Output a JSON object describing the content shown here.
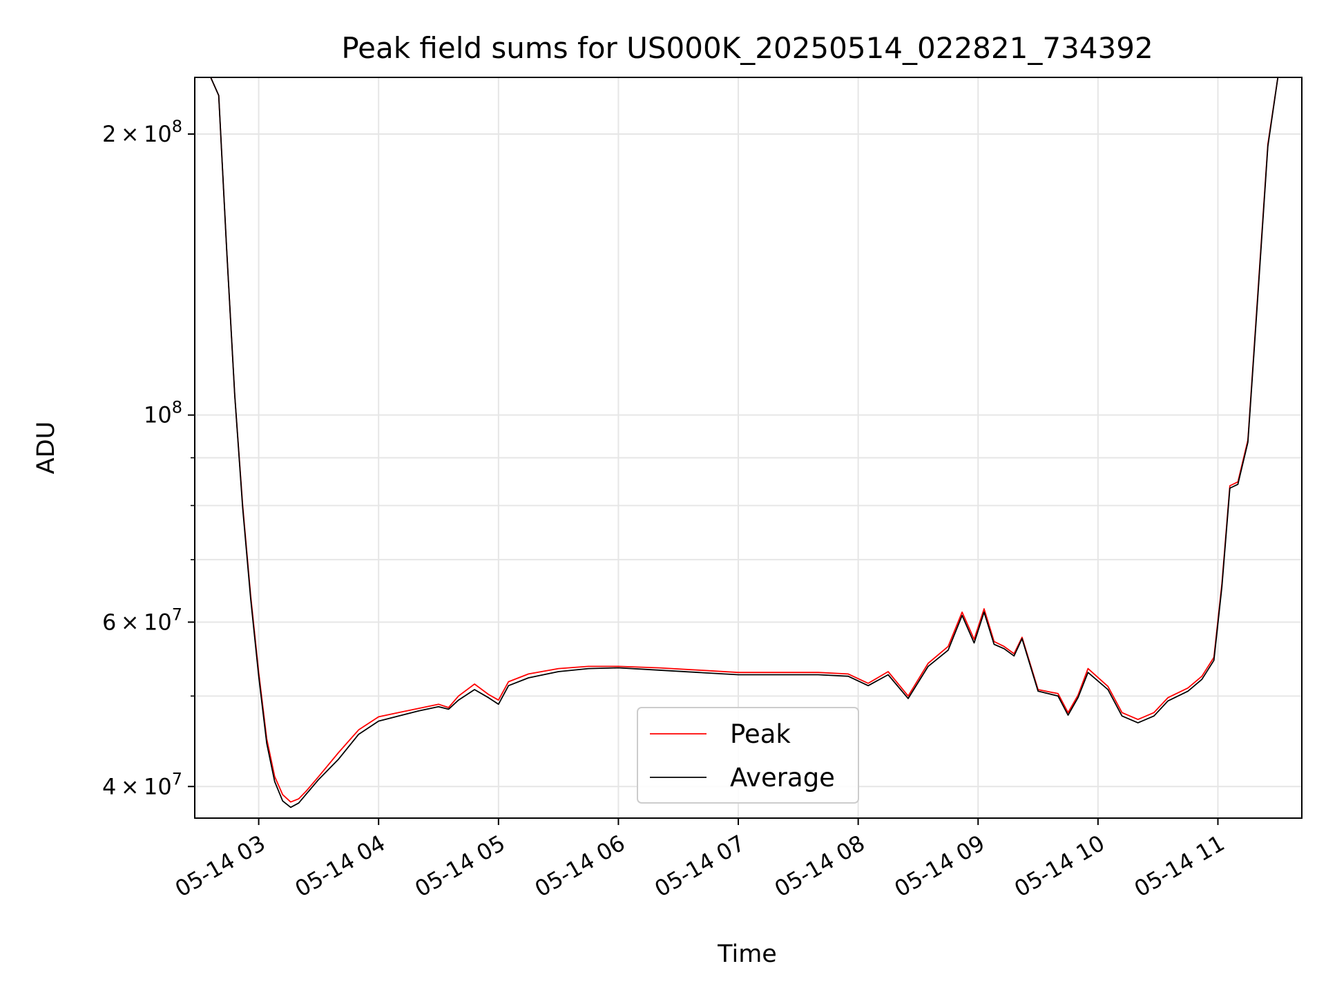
{
  "chart_data": {
    "type": "line",
    "title": "Peak field sums for US000K_20250514_022821_734392",
    "xlabel": "Time",
    "ylabel": "ADU",
    "yscale": "log",
    "grid": true,
    "legend_position": "lower-center",
    "xlim": [
      "2025-05-14 02:28",
      "2025-05-14 11:42"
    ],
    "ylim": [
      37000000,
      230000000
    ],
    "x_ticks": [
      {
        "value": "2025-05-14 03:00",
        "label": "05-14 03"
      },
      {
        "value": "2025-05-14 04:00",
        "label": "05-14 04"
      },
      {
        "value": "2025-05-14 05:00",
        "label": "05-14 05"
      },
      {
        "value": "2025-05-14 06:00",
        "label": "05-14 06"
      },
      {
        "value": "2025-05-14 07:00",
        "label": "05-14 07"
      },
      {
        "value": "2025-05-14 08:00",
        "label": "05-14 08"
      },
      {
        "value": "2025-05-14 09:00",
        "label": "05-14 09"
      },
      {
        "value": "2025-05-14 10:00",
        "label": "05-14 10"
      },
      {
        "value": "2025-05-14 11:00",
        "label": "05-14 11"
      }
    ],
    "y_major_ticks": [
      {
        "value": 40000000,
        "mant": "4",
        "exp": "7"
      },
      {
        "value": 60000000,
        "mant": "6",
        "exp": "7"
      },
      {
        "value": 100000000,
        "mant": "",
        "exp": "8"
      },
      {
        "value": 200000000,
        "mant": "2",
        "exp": "8"
      }
    ],
    "y_minor_ticks": [
      50000000,
      70000000,
      80000000,
      90000000
    ],
    "series": [
      {
        "name": "Peak",
        "color": "#ff0000",
        "x": [
          "2025-05-14 02:36",
          "2025-05-14 02:40",
          "2025-05-14 02:44",
          "2025-05-14 02:48",
          "2025-05-14 02:52",
          "2025-05-14 02:56",
          "2025-05-14 03:00",
          "2025-05-14 03:04",
          "2025-05-14 03:08",
          "2025-05-14 03:12",
          "2025-05-14 03:16",
          "2025-05-14 03:20",
          "2025-05-14 03:24",
          "2025-05-14 03:30",
          "2025-05-14 03:40",
          "2025-05-14 03:50",
          "2025-05-14 04:00",
          "2025-05-14 04:10",
          "2025-05-14 04:20",
          "2025-05-14 04:30",
          "2025-05-14 04:35",
          "2025-05-14 04:40",
          "2025-05-14 04:48",
          "2025-05-14 04:55",
          "2025-05-14 05:00",
          "2025-05-14 05:05",
          "2025-05-14 05:15",
          "2025-05-14 05:30",
          "2025-05-14 05:45",
          "2025-05-14 06:00",
          "2025-05-14 06:20",
          "2025-05-14 06:40",
          "2025-05-14 07:00",
          "2025-05-14 07:20",
          "2025-05-14 07:40",
          "2025-05-14 07:55",
          "2025-05-14 08:05",
          "2025-05-14 08:15",
          "2025-05-14 08:25",
          "2025-05-14 08:35",
          "2025-05-14 08:45",
          "2025-05-14 08:52",
          "2025-05-14 08:58",
          "2025-05-14 09:03",
          "2025-05-14 09:08",
          "2025-05-14 09:13",
          "2025-05-14 09:18",
          "2025-05-14 09:22",
          "2025-05-14 09:30",
          "2025-05-14 09:40",
          "2025-05-14 09:45",
          "2025-05-14 09:50",
          "2025-05-14 09:55",
          "2025-05-14 10:05",
          "2025-05-14 10:12",
          "2025-05-14 10:20",
          "2025-05-14 10:28",
          "2025-05-14 10:35",
          "2025-05-14 10:45",
          "2025-05-14 10:52",
          "2025-05-14 10:58",
          "2025-05-14 11:02",
          "2025-05-14 11:06",
          "2025-05-14 11:10",
          "2025-05-14 11:15",
          "2025-05-14 11:20",
          "2025-05-14 11:25",
          "2025-05-14 11:30"
        ],
        "values": [
          230000000,
          220000000,
          150000000,
          105000000,
          80000000,
          64000000,
          53000000,
          45000000,
          41000000,
          39200000,
          38500000,
          38800000,
          39600000,
          41000000,
          43500000,
          46000000,
          47500000,
          48000000,
          48500000,
          49000000,
          48600000,
          50000000,
          51500000,
          50200000,
          49500000,
          51800000,
          52800000,
          53500000,
          53800000,
          53800000,
          53600000,
          53300000,
          53000000,
          53000000,
          53000000,
          52800000,
          51600000,
          53100000,
          50000000,
          54200000,
          56500000,
          61500000,
          57500000,
          62000000,
          57200000,
          56500000,
          55500000,
          57800000,
          50800000,
          50300000,
          48000000,
          50100000,
          53500000,
          51200000,
          48000000,
          47200000,
          48000000,
          49800000,
          51000000,
          52500000,
          55000000,
          66000000,
          84000000,
          84800000,
          94000000,
          135000000,
          195000000,
          230000000
        ]
      },
      {
        "name": "Average",
        "color": "#000000",
        "x": [
          "2025-05-14 02:36",
          "2025-05-14 02:40",
          "2025-05-14 02:44",
          "2025-05-14 02:48",
          "2025-05-14 02:52",
          "2025-05-14 02:56",
          "2025-05-14 03:00",
          "2025-05-14 03:04",
          "2025-05-14 03:08",
          "2025-05-14 03:12",
          "2025-05-14 03:16",
          "2025-05-14 03:20",
          "2025-05-14 03:24",
          "2025-05-14 03:30",
          "2025-05-14 03:40",
          "2025-05-14 03:50",
          "2025-05-14 04:00",
          "2025-05-14 04:10",
          "2025-05-14 04:20",
          "2025-05-14 04:30",
          "2025-05-14 04:35",
          "2025-05-14 04:40",
          "2025-05-14 04:48",
          "2025-05-14 04:55",
          "2025-05-14 05:00",
          "2025-05-14 05:05",
          "2025-05-14 05:15",
          "2025-05-14 05:30",
          "2025-05-14 05:45",
          "2025-05-14 06:00",
          "2025-05-14 06:20",
          "2025-05-14 06:40",
          "2025-05-14 07:00",
          "2025-05-14 07:20",
          "2025-05-14 07:40",
          "2025-05-14 07:55",
          "2025-05-14 08:05",
          "2025-05-14 08:15",
          "2025-05-14 08:25",
          "2025-05-14 08:35",
          "2025-05-14 08:45",
          "2025-05-14 08:52",
          "2025-05-14 08:58",
          "2025-05-14 09:03",
          "2025-05-14 09:08",
          "2025-05-14 09:13",
          "2025-05-14 09:18",
          "2025-05-14 09:22",
          "2025-05-14 09:30",
          "2025-05-14 09:40",
          "2025-05-14 09:45",
          "2025-05-14 09:50",
          "2025-05-14 09:55",
          "2025-05-14 10:05",
          "2025-05-14 10:12",
          "2025-05-14 10:20",
          "2025-05-14 10:28",
          "2025-05-14 10:35",
          "2025-05-14 10:45",
          "2025-05-14 10:52",
          "2025-05-14 10:58",
          "2025-05-14 11:02",
          "2025-05-14 11:06",
          "2025-05-14 11:10",
          "2025-05-14 11:15",
          "2025-05-14 11:20",
          "2025-05-14 11:25",
          "2025-05-14 11:30"
        ],
        "values": [
          230000000,
          220000000,
          150000000,
          105000000,
          79500000,
          63500000,
          52500000,
          44500000,
          40500000,
          38600000,
          38000000,
          38400000,
          39300000,
          40700000,
          42800000,
          45500000,
          47000000,
          47600000,
          48200000,
          48700000,
          48400000,
          49500000,
          50800000,
          49800000,
          49000000,
          51300000,
          52300000,
          53100000,
          53500000,
          53600000,
          53300000,
          53000000,
          52700000,
          52700000,
          52700000,
          52500000,
          51300000,
          52700000,
          49700000,
          53800000,
          56000000,
          61000000,
          57000000,
          61500000,
          56800000,
          56200000,
          55200000,
          57600000,
          50600000,
          50000000,
          47700000,
          49800000,
          53000000,
          50800000,
          47600000,
          46800000,
          47600000,
          49400000,
          50600000,
          52100000,
          54600000,
          65500000,
          83500000,
          84300000,
          93500000,
          134000000,
          194000000,
          230000000
        ]
      }
    ]
  }
}
